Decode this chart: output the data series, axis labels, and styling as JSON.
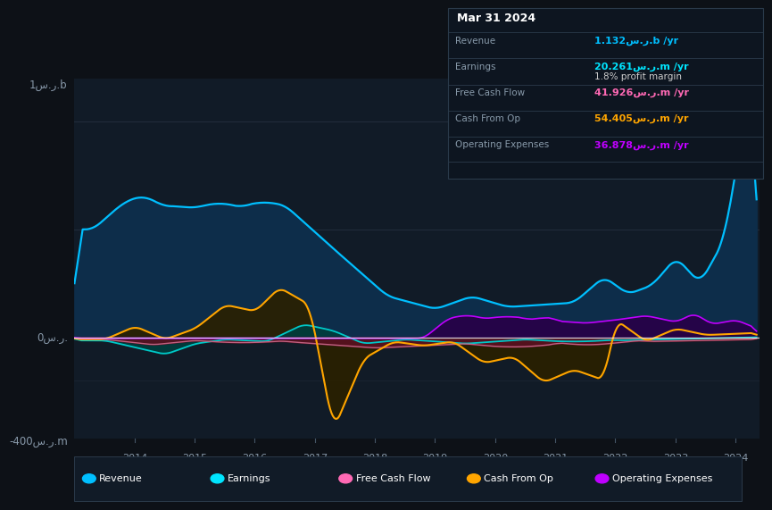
{
  "bg_color": "#0d1117",
  "plot_bg_color": "#131b26",
  "title": "Mar 31 2024",
  "table_data": {
    "Revenue": {
      "value": "1.132س.ر.b /yr",
      "color": "#00bfff"
    },
    "Earnings": {
      "value": "20.261س.ر.m /yr",
      "color": "#00e5ff"
    },
    "profit_margin": {
      "value": "1.8% profit margin",
      "color": "#ffffff"
    },
    "Free Cash Flow": {
      "value": "41.926س.ر.m /yr",
      "color": "#ff69b4"
    },
    "Cash From Op": {
      "value": "54.405س.ر.m /yr",
      "color": "#ffa500"
    },
    "Operating Expenses": {
      "value": "36.878س.ر.m /yr",
      "color": "#bf00ff"
    }
  },
  "y_label_top": "1س.ر.b",
  "y_label_zero": "0س.ر.",
  "y_label_bot": "-400س.ر.m",
  "legend": [
    {
      "label": "Revenue",
      "color": "#00bfff"
    },
    {
      "label": "Earnings",
      "color": "#00e5ff"
    },
    {
      "label": "Free Cash Flow",
      "color": "#ff69b4"
    },
    {
      "label": "Cash From Op",
      "color": "#ffa500"
    },
    {
      "label": "Operating Expenses",
      "color": "#bf00ff"
    }
  ],
  "colors": {
    "revenue_line": "#00bfff",
    "revenue_fill": "#0d2d4a",
    "earnings_line": "#00c8c8",
    "earnings_fill": "#003d3d",
    "fcf_line": "#c06080",
    "fcf_fill": "#5a1020",
    "cashop_line": "#ffa500",
    "cashop_fill": "#2a2000",
    "opex_line": "#bf00ff",
    "opex_fill": "#280048"
  }
}
